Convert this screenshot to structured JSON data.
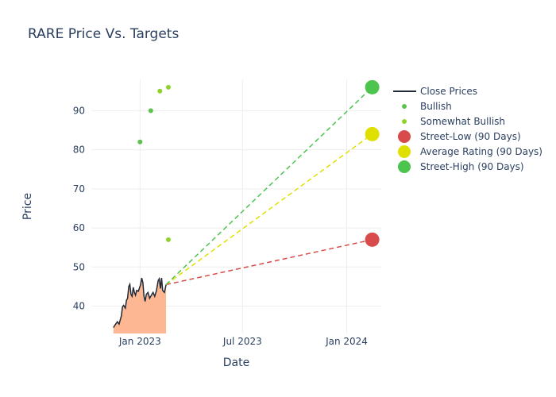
{
  "chart_data": {
    "type": "line",
    "title": "RARE Price Vs. Targets",
    "xlabel": "Date",
    "ylabel": "Price",
    "x_ticks": [
      "Jan 2023",
      "Jul 2023",
      "Jan 2024"
    ],
    "y_ticks": [
      40,
      50,
      60,
      70,
      80,
      90
    ],
    "ylim": [
      33,
      98
    ],
    "grid": true,
    "legend_position": "right",
    "series": [
      {
        "name": "Close Prices",
        "kind": "line-area",
        "color": "#1f2a36",
        "fill": "#fdb893",
        "points": [
          [
            "2022-11-15",
            34.5
          ],
          [
            "2022-11-18",
            35.2
          ],
          [
            "2022-11-22",
            36.0
          ],
          [
            "2022-11-25",
            35.4
          ],
          [
            "2022-11-29",
            37.5
          ],
          [
            "2022-12-01",
            39.8
          ],
          [
            "2022-12-03",
            40.2
          ],
          [
            "2022-12-06",
            39.5
          ],
          [
            "2022-12-08",
            41.5
          ],
          [
            "2022-12-10",
            42.0
          ],
          [
            "2022-12-12",
            45.0
          ],
          [
            "2022-12-14",
            45.6
          ],
          [
            "2022-12-16",
            43.0
          ],
          [
            "2022-12-18",
            42.5
          ],
          [
            "2022-12-20",
            44.8
          ],
          [
            "2022-12-22",
            43.5
          ],
          [
            "2022-12-24",
            42.8
          ],
          [
            "2022-12-26",
            44.0
          ],
          [
            "2022-12-29",
            43.8
          ],
          [
            "2023-01-02",
            45.5
          ],
          [
            "2023-01-04",
            47.2
          ],
          [
            "2023-01-06",
            46.0
          ],
          [
            "2023-01-08",
            42.5
          ],
          [
            "2023-01-10",
            41.2
          ],
          [
            "2023-01-12",
            43.0
          ],
          [
            "2023-01-15",
            43.5
          ],
          [
            "2023-01-18",
            42.0
          ],
          [
            "2023-01-21",
            42.8
          ],
          [
            "2023-01-24",
            43.5
          ],
          [
            "2023-01-27",
            42.5
          ],
          [
            "2023-01-30",
            44.0
          ],
          [
            "2023-02-02",
            46.5
          ],
          [
            "2023-02-04",
            47.0
          ],
          [
            "2023-02-06",
            44.5
          ],
          [
            "2023-02-08",
            47.2
          ],
          [
            "2023-02-10",
            44.0
          ],
          [
            "2023-02-13",
            43.5
          ],
          [
            "2023-02-16",
            45.5
          ]
        ]
      },
      {
        "name": "Bullish",
        "kind": "markers",
        "color": "#5cc24e",
        "points": [
          [
            "2023-01-01",
            82
          ],
          [
            "2023-01-20",
            90
          ]
        ]
      },
      {
        "name": "Somewhat Bullish",
        "kind": "markers",
        "color": "#8fd32a",
        "points": [
          [
            "2023-02-05",
            95
          ],
          [
            "2023-02-20",
            96
          ],
          [
            "2023-02-20",
            57
          ]
        ]
      },
      {
        "name": "Street-Low (90 Days)",
        "kind": "target",
        "color": "#d94a4a",
        "points": [
          [
            "2023-02-16",
            45.5
          ],
          [
            "2024-02-15",
            57
          ]
        ]
      },
      {
        "name": "Average Rating (90 Days)",
        "kind": "target",
        "color": "#e0e000",
        "points": [
          [
            "2023-02-16",
            45.5
          ],
          [
            "2024-02-15",
            84
          ]
        ]
      },
      {
        "name": "Street-High (90 Days)",
        "kind": "target",
        "color": "#4dc44d",
        "points": [
          [
            "2023-02-16",
            45.5
          ],
          [
            "2024-02-15",
            96
          ]
        ]
      }
    ]
  }
}
